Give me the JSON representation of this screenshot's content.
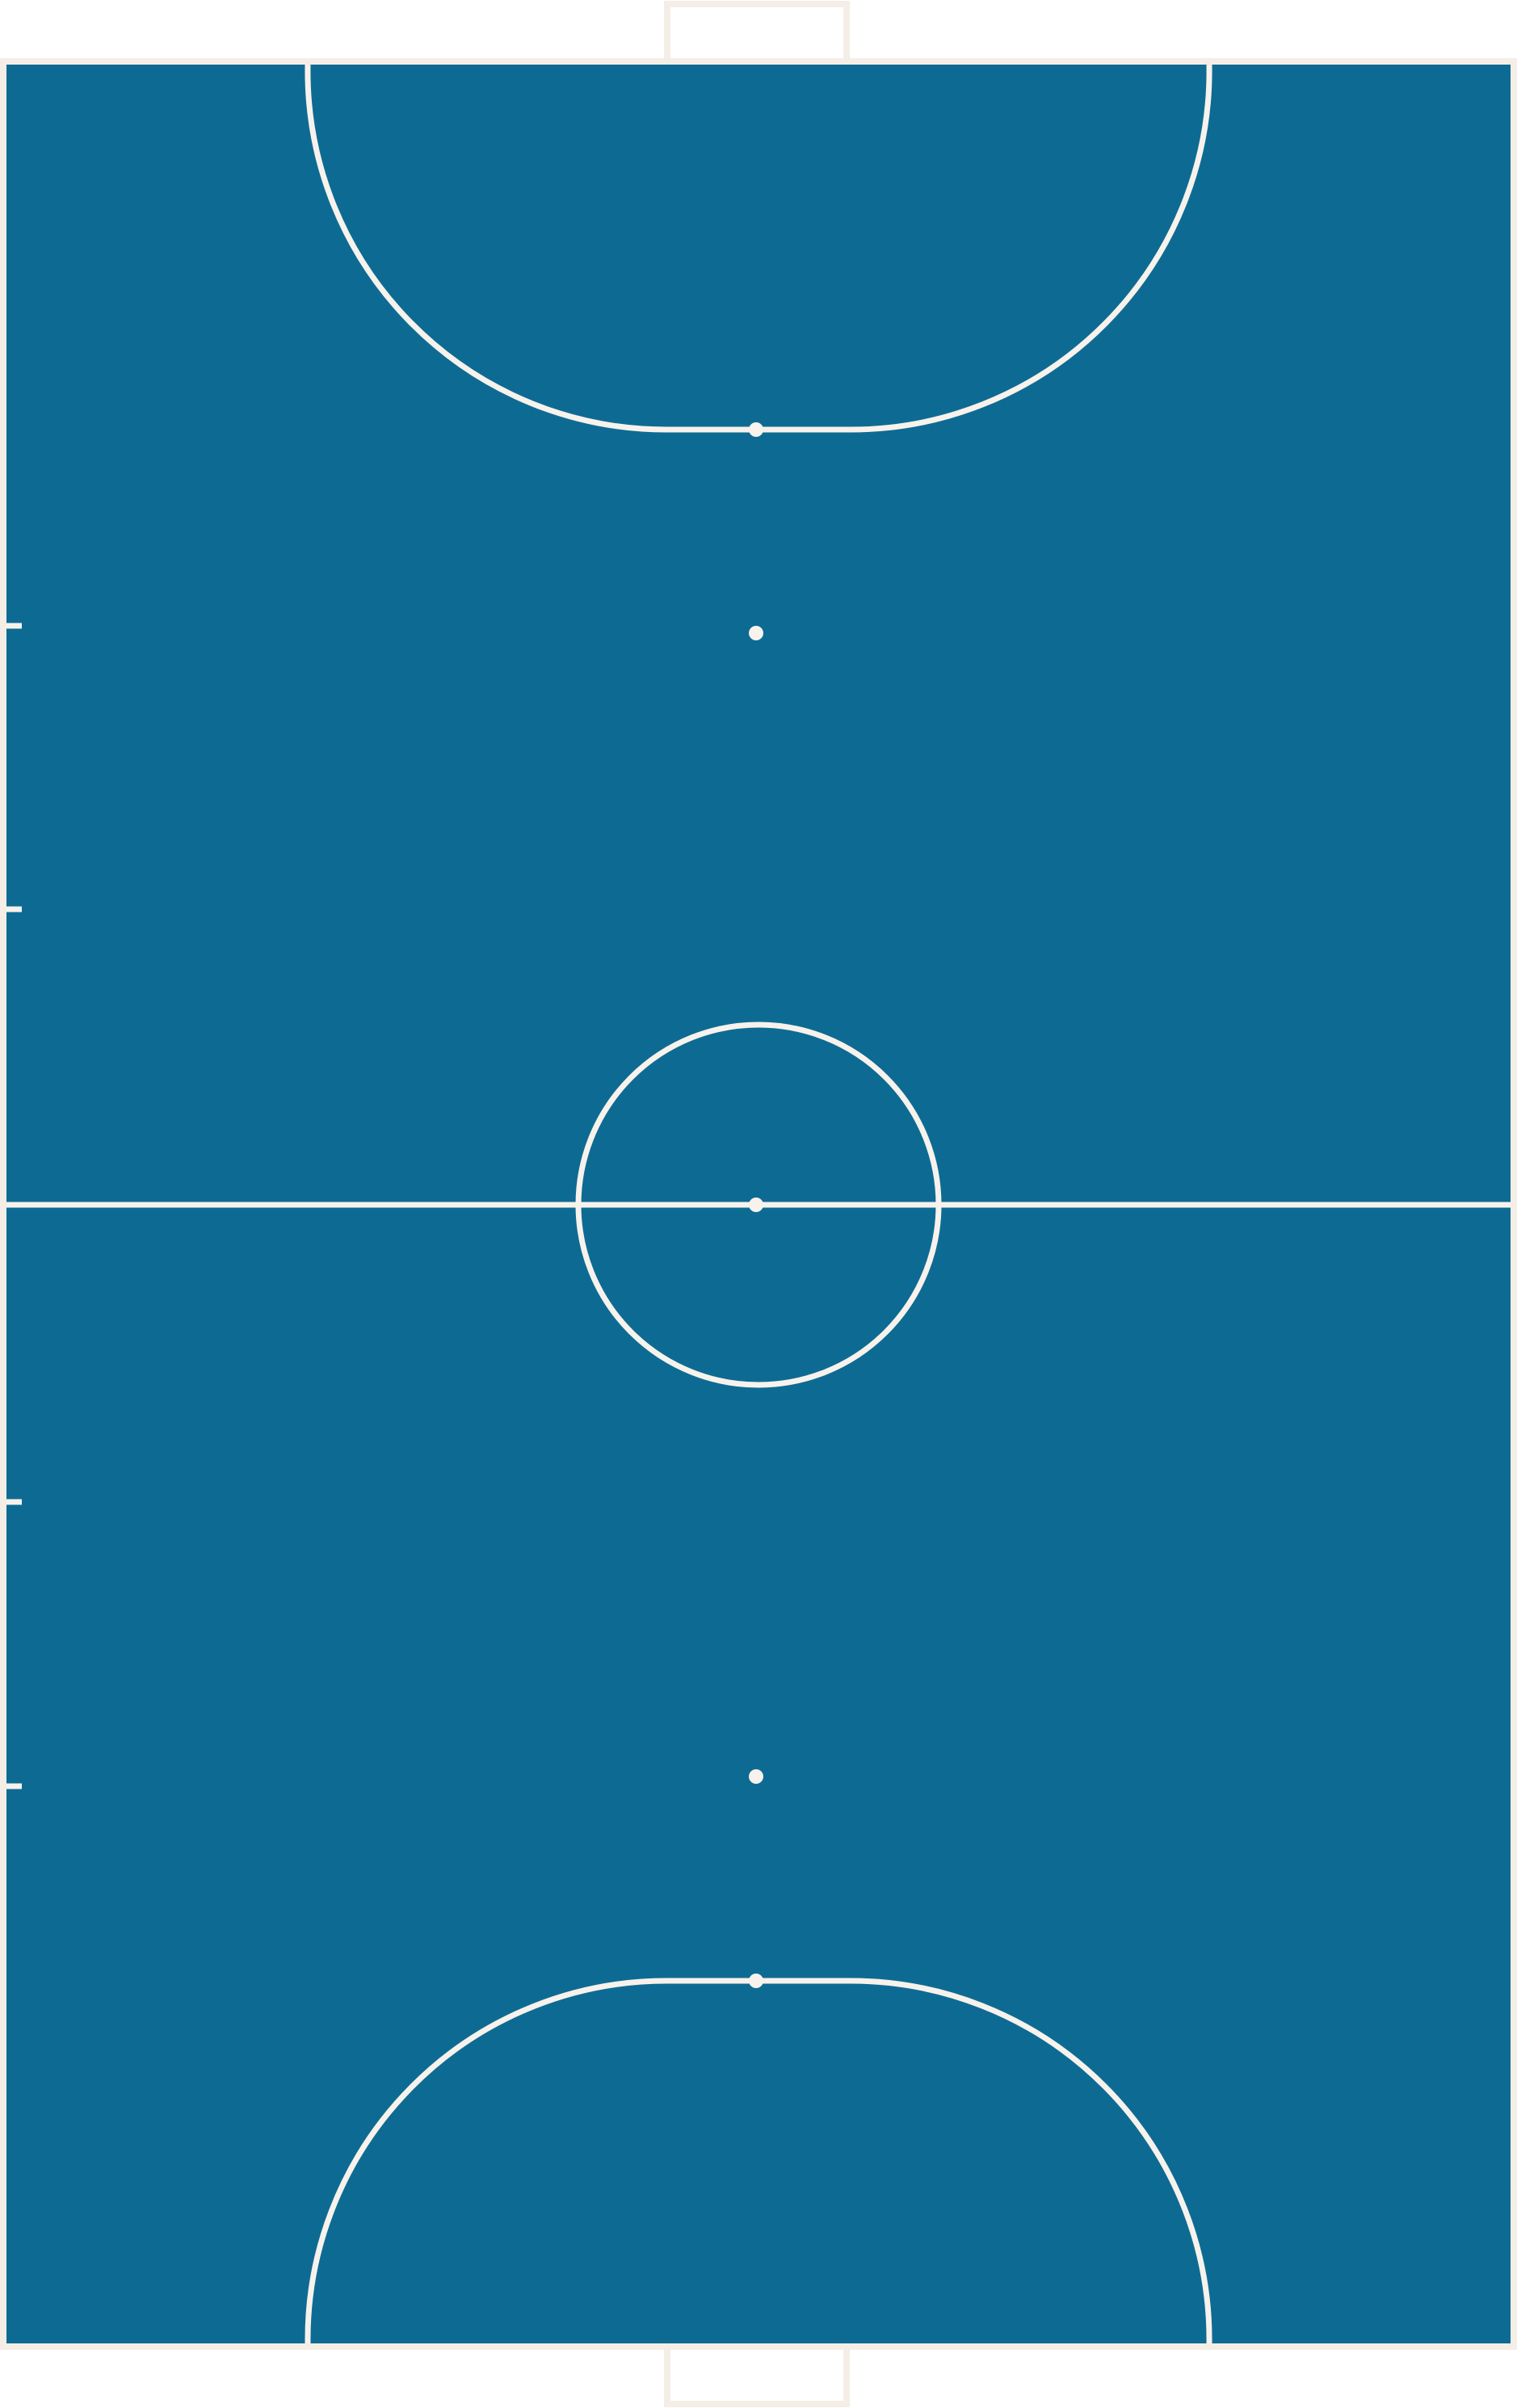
{
  "court": {
    "colors": {
      "surface": "#0d6b93",
      "lines": "#f7f2ec",
      "outer_border": "#f4eee6",
      "goal_frame": "#f4eee6",
      "background": "#ffffff"
    },
    "features": {
      "goals": 2,
      "penalty_areas": 2,
      "penalty_spots": 2,
      "second_penalty_spots": 2,
      "center_circle": true,
      "halfway_line": true,
      "substitution_zone_marks": 4
    }
  }
}
